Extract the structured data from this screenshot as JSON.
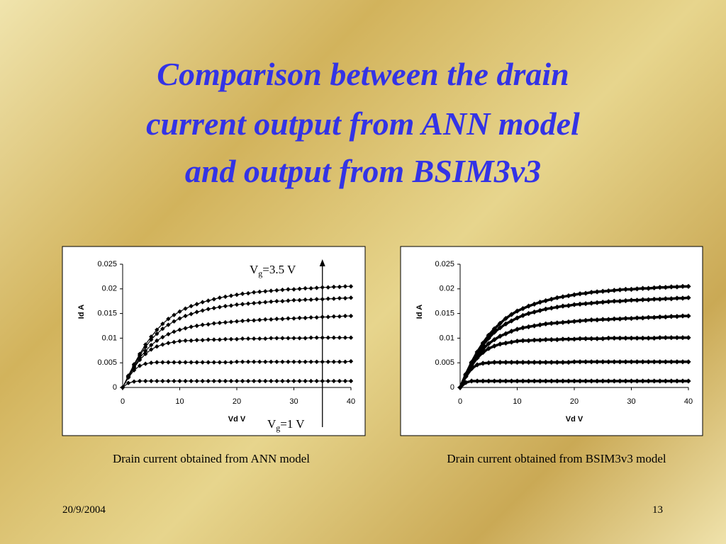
{
  "slide": {
    "title": [
      "Comparison between the drain",
      "current output from ANN model",
      "and output from BSIM3v3"
    ],
    "date": "20/9/2004",
    "page": "13"
  },
  "chart_data": [
    {
      "type": "line",
      "caption": "Drain current obtained from ANN model",
      "xlabel": "Vd V",
      "ylabel": "Id A",
      "xlim": [
        0,
        40
      ],
      "xticks": [
        0,
        10,
        20,
        30,
        40
      ],
      "ylim": [
        0,
        0.025
      ],
      "yticks": [
        0,
        0.005,
        0.01,
        0.015,
        0.02,
        0.025
      ],
      "marker": "diamond",
      "annotations": [
        {
          "text": "V",
          "sub": "g",
          "suffix": "=3.5 V"
        },
        {
          "text": "V",
          "sub": "g",
          "suffix": "=1 V"
        }
      ],
      "arrow_x": 35,
      "x": [
        0,
        1,
        2,
        3,
        4,
        5,
        6,
        7,
        8,
        9,
        10,
        11,
        12,
        13,
        14,
        15,
        16,
        17,
        18,
        19,
        20,
        21,
        22,
        23,
        24,
        25,
        26,
        27,
        28,
        29,
        30,
        31,
        32,
        33,
        34,
        35,
        36,
        37,
        38,
        39,
        40
      ],
      "series": [
        {
          "color": "#000000",
          "values": [
            0,
            0.0009,
            0.0012,
            0.0013,
            0.0013,
            0.0013,
            0.0013,
            0.0013,
            0.0013,
            0.0013,
            0.0013,
            0.0013,
            0.0013,
            0.0013,
            0.0013,
            0.0013,
            0.0013,
            0.0013,
            0.0013,
            0.0013,
            0.0013,
            0.0013,
            0.0013,
            0.0013,
            0.0013,
            0.0013,
            0.0013,
            0.0013,
            0.0013,
            0.0013,
            0.0013,
            0.0013,
            0.0013,
            0.0013,
            0.0013,
            0.0013,
            0.0013,
            0.0013,
            0.0013,
            0.0013,
            0.0013
          ]
        },
        {
          "color": "#000000",
          "values": [
            0,
            0.002,
            0.0035,
            0.0044,
            0.0048,
            0.005,
            0.0051,
            0.0051,
            0.0051,
            0.0051,
            0.0051,
            0.0051,
            0.0051,
            0.0051,
            0.0051,
            0.0051,
            0.0051,
            0.0051,
            0.0051,
            0.0051,
            0.0052,
            0.0052,
            0.0052,
            0.0052,
            0.0052,
            0.0052,
            0.0052,
            0.0052,
            0.0052,
            0.0052,
            0.0052,
            0.0052,
            0.0052,
            0.0052,
            0.0052,
            0.0052,
            0.0052,
            0.0052,
            0.0052,
            0.0052,
            0.0053
          ]
        },
        {
          "color": "#000000",
          "values": [
            0,
            0.0021,
            0.004,
            0.0056,
            0.0068,
            0.0077,
            0.0083,
            0.0087,
            0.009,
            0.0092,
            0.0094,
            0.0095,
            0.0095,
            0.0096,
            0.0096,
            0.0097,
            0.0097,
            0.0097,
            0.0098,
            0.0098,
            0.0098,
            0.0099,
            0.0099,
            0.0099,
            0.0099,
            0.0099,
            0.01,
            0.01,
            0.01,
            0.01,
            0.01,
            0.01,
            0.01,
            0.0101,
            0.0101,
            0.0101,
            0.0101,
            0.0101,
            0.0101,
            0.0101,
            0.0101
          ]
        },
        {
          "color": "#000000",
          "values": [
            0,
            0.0022,
            0.0042,
            0.006,
            0.0074,
            0.0086,
            0.0095,
            0.0102,
            0.0108,
            0.0113,
            0.0117,
            0.012,
            0.0123,
            0.0125,
            0.0127,
            0.0128,
            0.013,
            0.0131,
            0.0132,
            0.0133,
            0.0134,
            0.0135,
            0.0136,
            0.0136,
            0.0137,
            0.0138,
            0.0138,
            0.0139,
            0.0139,
            0.014,
            0.014,
            0.0141,
            0.0141,
            0.0142,
            0.0142,
            0.0143,
            0.0143,
            0.0144,
            0.0144,
            0.0145,
            0.0145
          ]
        },
        {
          "color": "#000000",
          "values": [
            0,
            0.0023,
            0.0045,
            0.0065,
            0.0082,
            0.0097,
            0.0109,
            0.0119,
            0.0127,
            0.0134,
            0.014,
            0.0145,
            0.0149,
            0.0153,
            0.0156,
            0.0159,
            0.0161,
            0.0163,
            0.0165,
            0.0166,
            0.0168,
            0.0169,
            0.017,
            0.0171,
            0.0172,
            0.0173,
            0.0174,
            0.0175,
            0.0175,
            0.0176,
            0.0177,
            0.0177,
            0.0178,
            0.0178,
            0.0179,
            0.0179,
            0.018,
            0.018,
            0.0181,
            0.0181,
            0.0182
          ]
        },
        {
          "color": "#000000",
          "values": [
            0,
            0.0024,
            0.0047,
            0.0068,
            0.0087,
            0.0103,
            0.0117,
            0.0129,
            0.0139,
            0.0147,
            0.0154,
            0.016,
            0.0165,
            0.0169,
            0.0173,
            0.0176,
            0.0179,
            0.0182,
            0.0184,
            0.0186,
            0.0188,
            0.019,
            0.0191,
            0.0193,
            0.0194,
            0.0195,
            0.0196,
            0.0197,
            0.0198,
            0.0199,
            0.0199,
            0.02,
            0.0201,
            0.0201,
            0.0202,
            0.0203,
            0.0203,
            0.0204,
            0.0204,
            0.0205,
            0.0205
          ]
        }
      ]
    },
    {
      "type": "line",
      "caption": "Drain current obtained from BSIM3v3 model",
      "xlabel": "Vd V",
      "ylabel": "Id A",
      "xlim": [
        0,
        40
      ],
      "xticks": [
        0,
        10,
        20,
        30,
        40
      ],
      "ylim": [
        0,
        0.025
      ],
      "yticks": [
        0,
        0.005,
        0.01,
        0.015,
        0.02,
        0.025
      ],
      "marker": "diamond",
      "x": [
        0,
        1,
        2,
        3,
        4,
        5,
        6,
        7,
        8,
        9,
        10,
        11,
        12,
        13,
        14,
        15,
        16,
        17,
        18,
        19,
        20,
        21,
        22,
        23,
        24,
        25,
        26,
        27,
        28,
        29,
        30,
        31,
        32,
        33,
        34,
        35,
        36,
        37,
        38,
        39,
        40
      ],
      "series": [
        {
          "color": "#000000",
          "values": [
            0,
            0.001,
            0.0013,
            0.0013,
            0.0013,
            0.0013,
            0.0013,
            0.0013,
            0.0013,
            0.0013,
            0.0013,
            0.0013,
            0.0013,
            0.0013,
            0.0013,
            0.0013,
            0.0013,
            0.0013,
            0.0013,
            0.0013,
            0.0013,
            0.0013,
            0.0013,
            0.0013,
            0.0013,
            0.0013,
            0.0013,
            0.0013,
            0.0013,
            0.0013,
            0.0013,
            0.0013,
            0.0013,
            0.0013,
            0.0013,
            0.0013,
            0.0013,
            0.0013,
            0.0013,
            0.0013,
            0.0013
          ]
        },
        {
          "color": "#000000",
          "values": [
            0,
            0.0022,
            0.0038,
            0.0046,
            0.0049,
            0.005,
            0.0051,
            0.0051,
            0.0051,
            0.0051,
            0.0051,
            0.0051,
            0.0051,
            0.0051,
            0.0051,
            0.0051,
            0.0051,
            0.0051,
            0.0051,
            0.0051,
            0.0052,
            0.0052,
            0.0052,
            0.0052,
            0.0052,
            0.0052,
            0.0052,
            0.0052,
            0.0052,
            0.0052,
            0.0052,
            0.0052,
            0.0052,
            0.0052,
            0.0052,
            0.0052,
            0.0052,
            0.0052,
            0.0052,
            0.0052,
            0.0052
          ]
        },
        {
          "color": "#000000",
          "values": [
            0,
            0.0024,
            0.0044,
            0.006,
            0.0071,
            0.0079,
            0.0084,
            0.0088,
            0.009,
            0.0092,
            0.0094,
            0.0095,
            0.0095,
            0.0096,
            0.0096,
            0.0097,
            0.0097,
            0.0097,
            0.0098,
            0.0098,
            0.0098,
            0.0099,
            0.0099,
            0.0099,
            0.0099,
            0.0099,
            0.01,
            0.01,
            0.01,
            0.01,
            0.01,
            0.01,
            0.01,
            0.01,
            0.01,
            0.0101,
            0.0101,
            0.0101,
            0.0101,
            0.0101,
            0.0101
          ]
        },
        {
          "color": "#000000",
          "values": [
            0,
            0.0025,
            0.0046,
            0.0064,
            0.0078,
            0.0089,
            0.0097,
            0.0104,
            0.0109,
            0.0114,
            0.0118,
            0.0121,
            0.0123,
            0.0125,
            0.0127,
            0.0129,
            0.013,
            0.0131,
            0.0132,
            0.0133,
            0.0134,
            0.0135,
            0.0136,
            0.0137,
            0.0137,
            0.0138,
            0.0138,
            0.0139,
            0.0139,
            0.014,
            0.014,
            0.0141,
            0.0141,
            0.0142,
            0.0142,
            0.0143,
            0.0143,
            0.0144,
            0.0144,
            0.0145,
            0.0145
          ]
        },
        {
          "color": "#000000",
          "values": [
            0,
            0.0026,
            0.0049,
            0.0069,
            0.0086,
            0.01,
            0.0112,
            0.0121,
            0.0129,
            0.0135,
            0.0141,
            0.0146,
            0.015,
            0.0153,
            0.0156,
            0.0159,
            0.0161,
            0.0163,
            0.0165,
            0.0166,
            0.0168,
            0.0169,
            0.017,
            0.0171,
            0.0172,
            0.0173,
            0.0174,
            0.0175,
            0.0175,
            0.0176,
            0.0177,
            0.0177,
            0.0178,
            0.0178,
            0.0179,
            0.0179,
            0.018,
            0.018,
            0.0181,
            0.0181,
            0.0182
          ]
        },
        {
          "color": "#000000",
          "values": [
            0,
            0.0027,
            0.0051,
            0.0072,
            0.009,
            0.0106,
            0.0119,
            0.013,
            0.014,
            0.0148,
            0.0155,
            0.016,
            0.0165,
            0.0169,
            0.0173,
            0.0176,
            0.0179,
            0.0182,
            0.0184,
            0.0186,
            0.0188,
            0.019,
            0.0191,
            0.0193,
            0.0194,
            0.0195,
            0.0196,
            0.0197,
            0.0198,
            0.0199,
            0.0199,
            0.02,
            0.0201,
            0.0201,
            0.0202,
            0.0203,
            0.0203,
            0.0204,
            0.0204,
            0.0205,
            0.0205
          ]
        }
      ]
    }
  ]
}
